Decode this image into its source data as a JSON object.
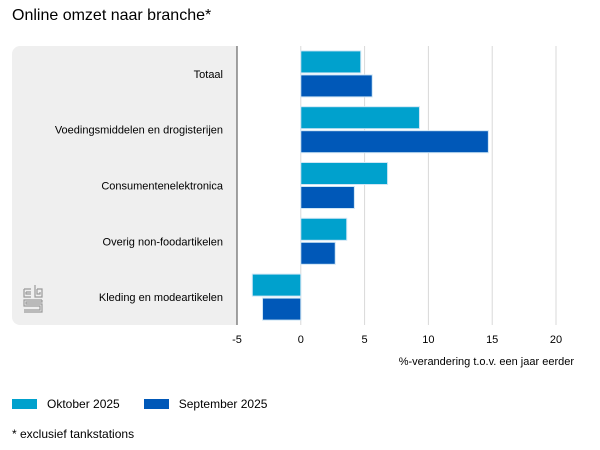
{
  "title": "Online omzet naar branche*",
  "footnote": "* exclusief tankstations",
  "logo": "cbs-logo-icon",
  "chart_data": {
    "type": "bar",
    "orientation": "horizontal",
    "title": "Online omzet naar branche*",
    "xlabel": "%-verandering t.o.v. een jaar eerder",
    "ylabel": "",
    "xlim": [
      -5,
      20
    ],
    "xticks": [
      -5,
      0,
      5,
      10,
      15,
      20
    ],
    "xtick_labels": [
      "-5",
      "0",
      "5",
      "10",
      "15",
      "20"
    ],
    "grid": true,
    "legend_position": "bottom-left",
    "categories": [
      "Totaal",
      "Voedingsmiddelen en drogisterijen",
      "Consumentenelektronica",
      "Overig non-foodartikelen",
      "Kleding en modeartikelen"
    ],
    "series": [
      {
        "name": "Oktober 2025",
        "color": "#00a1cd",
        "values": [
          4.7,
          9.3,
          6.8,
          3.6,
          -3.8
        ]
      },
      {
        "name": "September 2025",
        "color": "#0058b8",
        "values": [
          5.6,
          14.7,
          4.2,
          2.7,
          -3.0
        ]
      }
    ]
  }
}
